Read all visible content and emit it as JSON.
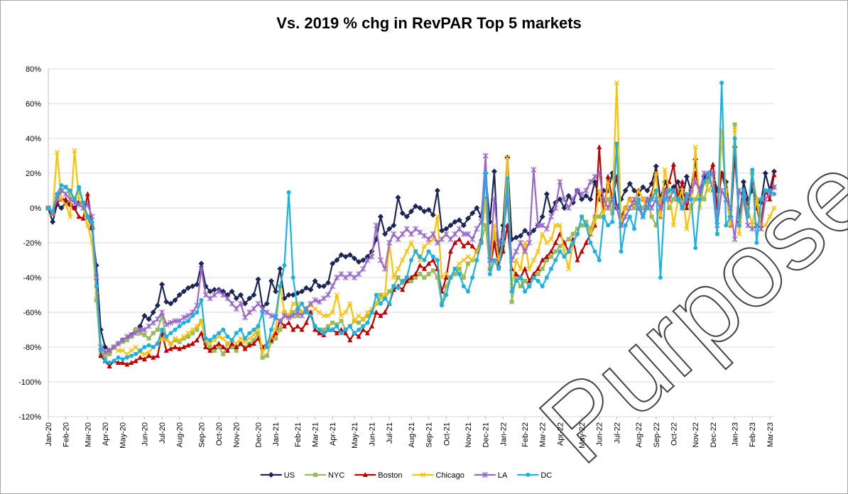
{
  "chart_data": {
    "type": "line",
    "title": "Vs. 2019 % chg in RevPAR Top 5 markets",
    "watermark": "Purpose",
    "grid": true,
    "legend": "bottom",
    "ylim": [
      -120,
      80
    ],
    "yticks": [
      {
        "value": -120,
        "label": "-120%"
      },
      {
        "value": -100,
        "label": "-100%"
      },
      {
        "value": -80,
        "label": "-80%"
      },
      {
        "value": -60,
        "label": "-60%"
      },
      {
        "value": -40,
        "label": "-40%"
      },
      {
        "value": -20,
        "label": "-20%"
      },
      {
        "value": 0,
        "label": "0%"
      },
      {
        "value": 20,
        "label": "20%"
      },
      {
        "value": 40,
        "label": "40%"
      },
      {
        "value": 60,
        "label": "60%"
      },
      {
        "value": 80,
        "label": "80%"
      }
    ],
    "categories": [
      "Jan-20",
      null,
      null,
      null,
      "Feb-20",
      null,
      null,
      null,
      null,
      "Mar-20",
      null,
      null,
      null,
      "Apr-20",
      null,
      null,
      null,
      "May-20",
      null,
      null,
      null,
      null,
      "Jun-20",
      null,
      null,
      null,
      "Jul-20",
      null,
      null,
      null,
      "Aug-20",
      null,
      null,
      null,
      null,
      "Sep-20",
      null,
      null,
      null,
      "Oct-20",
      null,
      null,
      null,
      "Nov-20",
      null,
      null,
      null,
      null,
      "Dec-20",
      null,
      null,
      null,
      "Jan-21",
      null,
      null,
      null,
      null,
      "Feb-21",
      null,
      null,
      null,
      "Mar-21",
      null,
      null,
      null,
      "Apr-21",
      null,
      null,
      null,
      null,
      "May-21",
      null,
      null,
      null,
      "Jun-21",
      null,
      null,
      null,
      "Jul-21",
      null,
      null,
      null,
      null,
      "Aug-21",
      null,
      null,
      null,
      "Sep-21",
      null,
      null,
      null,
      "Oct-21",
      null,
      null,
      null,
      null,
      "Nov-21",
      null,
      null,
      null,
      "Dec-21",
      null,
      null,
      null,
      "Jan-22",
      null,
      null,
      null,
      null,
      "Feb-22",
      null,
      null,
      null,
      "Mar-22",
      null,
      null,
      null,
      "Apr-22",
      null,
      null,
      null,
      null,
      "May-22",
      null,
      null,
      null,
      "Jun-22",
      null,
      null,
      null,
      "Jul-22",
      null,
      null,
      null,
      null,
      "Aug-22",
      null,
      null,
      null,
      "Sep-22",
      null,
      null,
      null,
      "Oct-22",
      null,
      null,
      null,
      null,
      "Nov-22",
      null,
      null,
      null,
      "Dec-22",
      null,
      null,
      null,
      null,
      "Jan-23",
      null,
      null,
      null,
      "Feb-23",
      null,
      null,
      null,
      "Mar-23",
      null
    ],
    "series": [
      {
        "name": "US",
        "color": "#1b2657",
        "marker": "diamond",
        "values": [
          0,
          -8,
          2,
          0,
          3,
          2,
          0,
          3,
          2,
          -5,
          -12,
          -33,
          -70,
          -80,
          -82,
          -80,
          -78,
          -76,
          -75,
          -73,
          -70,
          -68,
          -62,
          -64,
          -60,
          -56,
          -44,
          -54,
          -55,
          -53,
          -50,
          -48,
          -46,
          -45,
          -44,
          -32,
          -45,
          -48,
          -47,
          -47,
          -48,
          -50,
          -48,
          -52,
          -50,
          -55,
          -52,
          -50,
          -41,
          -57,
          -55,
          -42,
          -48,
          -35,
          -52,
          -50,
          -50,
          -49,
          -48,
          -46,
          -47,
          -42,
          -45,
          -45,
          -43,
          -32,
          -30,
          -27,
          -28,
          -27,
          -29,
          -31,
          -30,
          -28,
          -25,
          -18,
          -5,
          -15,
          -12,
          -10,
          6,
          -3,
          -5,
          -2,
          1,
          0,
          -2,
          -1,
          -4,
          10,
          -13,
          -12,
          -10,
          -8,
          -7,
          -10,
          -6,
          -3,
          0,
          -5,
          20,
          -8,
          21,
          -30,
          -10,
          29,
          -18,
          -17,
          -16,
          -13,
          -15,
          -13,
          -10,
          -5,
          8,
          -2,
          3,
          5,
          0,
          7,
          3,
          10,
          5,
          7,
          5,
          15,
          5,
          10,
          10,
          20,
          0,
          5,
          10,
          14,
          10,
          8,
          12,
          10,
          14,
          24,
          5,
          15,
          10,
          12,
          15,
          5,
          18,
          10,
          28,
          5,
          18,
          20,
          20,
          10,
          20,
          15,
          -5,
          35,
          -8,
          15,
          5,
          10,
          5,
          3,
          20,
          10,
          21
        ]
      },
      {
        "name": "NYC",
        "color": "#9bbb59",
        "marker": "square",
        "values": [
          0,
          -3,
          5,
          10,
          12,
          8,
          5,
          10,
          3,
          -5,
          -10,
          -53,
          -85,
          -86,
          -84,
          -80,
          -78,
          -77,
          -76,
          -74,
          -70,
          -72,
          -73,
          -75,
          -72,
          -70,
          -62,
          -75,
          -78,
          -76,
          -77,
          -75,
          -74,
          -72,
          -70,
          -65,
          -78,
          -80,
          -82,
          -80,
          -84,
          -78,
          -80,
          -82,
          -78,
          -80,
          -78,
          -76,
          -72,
          -86,
          -85,
          -77,
          -75,
          -70,
          -60,
          -62,
          -60,
          -62,
          -60,
          -58,
          -60,
          -68,
          -70,
          -70,
          -68,
          -66,
          -67,
          -65,
          -70,
          -68,
          -65,
          -66,
          -64,
          -62,
          -60,
          -55,
          -50,
          -52,
          -48,
          -45,
          -40,
          -43,
          -40,
          -42,
          -40,
          -38,
          -40,
          -38,
          -36,
          -40,
          -55,
          -45,
          -40,
          -38,
          -35,
          -40,
          -32,
          -30,
          -25,
          -20,
          -10,
          -35,
          -15,
          -30,
          -25,
          17,
          -54,
          -40,
          -45,
          -42,
          -45,
          -40,
          -38,
          -35,
          -30,
          -28,
          -25,
          -22,
          -20,
          -18,
          -15,
          -12,
          -10,
          -8,
          -12,
          -5,
          -5,
          0,
          5,
          -3,
          35,
          -10,
          0,
          5,
          0,
          3,
          0,
          5,
          -5,
          -10,
          5,
          10,
          0,
          5,
          10,
          3,
          5,
          0,
          5,
          10,
          5,
          15,
          20,
          0,
          40,
          10,
          -5,
          48,
          -10,
          5,
          0,
          20,
          5,
          -5,
          10,
          10,
          12
        ]
      },
      {
        "name": "Boston",
        "color": "#c00000",
        "marker": "triangle",
        "values": [
          0,
          -3,
          3,
          5,
          5,
          2,
          0,
          -5,
          -6,
          8,
          -10,
          -40,
          -85,
          -88,
          -91,
          -88,
          -89,
          -89,
          -90,
          -89,
          -88,
          -86,
          -87,
          -85,
          -86,
          -85,
          -72,
          -82,
          -81,
          -80,
          -81,
          -80,
          -79,
          -78,
          -76,
          -72,
          -80,
          -82,
          -80,
          -78,
          -80,
          -82,
          -78,
          -80,
          -78,
          -81,
          -79,
          -78,
          -75,
          -80,
          -78,
          -76,
          -72,
          -65,
          -68,
          -66,
          -70,
          -68,
          -70,
          -66,
          -60,
          -70,
          -72,
          -73,
          -70,
          -70,
          -72,
          -70,
          -72,
          -76,
          -72,
          -74,
          -70,
          -72,
          -68,
          -60,
          -62,
          -60,
          -55,
          -47,
          -45,
          -47,
          -42,
          -40,
          -38,
          -33,
          -35,
          -32,
          -30,
          -35,
          -48,
          -40,
          -25,
          -20,
          -18,
          -22,
          -20,
          -22,
          -25,
          -18,
          5,
          -35,
          -20,
          -33,
          -25,
          -10,
          -35,
          -38,
          -40,
          -35,
          -42,
          -38,
          -35,
          -30,
          -28,
          -25,
          -20,
          -15,
          -20,
          -25,
          -18,
          -30,
          -25,
          -20,
          -15,
          -10,
          35,
          -5,
          18,
          5,
          18,
          -5,
          0,
          5,
          3,
          10,
          5,
          0,
          8,
          20,
          -5,
          10,
          15,
          25,
          5,
          15,
          0,
          10,
          20,
          10,
          15,
          18,
          25,
          0,
          20,
          10,
          -10,
          30,
          -5,
          10,
          0,
          15,
          0,
          -10,
          10,
          5,
          19
        ]
      },
      {
        "name": "Chicago",
        "color": "#ffc000",
        "marker": "x",
        "values": [
          0,
          -3,
          32,
          5,
          2,
          -5,
          33,
          5,
          0,
          -10,
          -20,
          -50,
          -82,
          -84,
          -82,
          -80,
          -82,
          -82,
          -84,
          -82,
          -80,
          -83,
          -84,
          -83,
          -80,
          -78,
          -75,
          -76,
          -78,
          -75,
          -76,
          -74,
          -72,
          -70,
          -68,
          -65,
          -76,
          -78,
          -76,
          -74,
          -75,
          -78,
          -76,
          -78,
          -75,
          -77,
          -75,
          -73,
          -68,
          -83,
          -80,
          -74,
          -70,
          -45,
          -60,
          -62,
          -55,
          -55,
          -60,
          -58,
          -56,
          -58,
          -60,
          -62,
          -62,
          -60,
          -50,
          -62,
          -60,
          -55,
          -65,
          -62,
          -64,
          -60,
          -58,
          -55,
          -52,
          -50,
          -20,
          -40,
          -35,
          -30,
          -25,
          -20,
          -25,
          -30,
          -22,
          -20,
          -18,
          -5,
          -40,
          -38,
          -40,
          -35,
          -32,
          -30,
          -28,
          -30,
          -25,
          -20,
          5,
          -35,
          -10,
          -30,
          -20,
          29,
          -45,
          -30,
          -35,
          -20,
          -35,
          -30,
          -25,
          -15,
          -20,
          -18,
          -10,
          -10,
          -25,
          -35,
          -20,
          -15,
          -5,
          -10,
          -15,
          -8,
          10,
          -5,
          15,
          0,
          72,
          -10,
          0,
          5,
          3,
          10,
          5,
          0,
          5,
          20,
          -5,
          22,
          10,
          -10,
          5,
          10,
          -12,
          0,
          35,
          0,
          15,
          10,
          15,
          -15,
          45,
          10,
          -10,
          45,
          -15,
          5,
          0,
          -10,
          5,
          -12,
          -10,
          -5,
          0
        ]
      },
      {
        "name": "LA",
        "color": "#9966cc",
        "marker": "star",
        "values": [
          0,
          -2,
          5,
          10,
          8,
          5,
          3,
          2,
          0,
          2,
          -5,
          -40,
          -80,
          -83,
          -82,
          -80,
          -78,
          -76,
          -74,
          -73,
          -72,
          -70,
          -70,
          -68,
          -66,
          -64,
          -60,
          -67,
          -66,
          -65,
          -65,
          -63,
          -62,
          -60,
          -56,
          -35,
          -50,
          -52,
          -50,
          -48,
          -50,
          -52,
          -55,
          -58,
          -55,
          -63,
          -60,
          -58,
          -55,
          -58,
          -60,
          -62,
          -63,
          -65,
          -62,
          -63,
          -62,
          -60,
          -62,
          -58,
          -55,
          -53,
          -54,
          -52,
          -50,
          -45,
          -40,
          -38,
          -40,
          -38,
          -40,
          -38,
          -35,
          -30,
          -28,
          -10,
          -30,
          -35,
          -20,
          -15,
          -18,
          -15,
          -12,
          -15,
          -12,
          -14,
          -16,
          -18,
          -15,
          -20,
          -18,
          -15,
          -18,
          -15,
          -12,
          -15,
          -15,
          -18,
          -12,
          -8,
          30,
          -30,
          5,
          -20,
          -15,
          5,
          -30,
          -25,
          -20,
          -25,
          -20,
          22,
          -10,
          -10,
          -12,
          -5,
          0,
          15,
          5,
          0,
          5,
          10,
          8,
          10,
          15,
          18,
          20,
          5,
          0,
          5,
          0,
          -10,
          -5,
          0,
          5,
          0,
          -5,
          5,
          0,
          5,
          0,
          10,
          5,
          10,
          5,
          0,
          5,
          10,
          15,
          10,
          20,
          18,
          20,
          -10,
          10,
          5,
          0,
          -18,
          10,
          5,
          -10,
          -12,
          -10,
          -12,
          5,
          8,
          12
        ]
      },
      {
        "name": "DC",
        "color": "#19b2e6",
        "marker": "circle",
        "values": [
          0,
          -2,
          8,
          13,
          12,
          10,
          5,
          12,
          3,
          -5,
          -8,
          -45,
          -82,
          -88,
          -89,
          -88,
          -86,
          -87,
          -86,
          -85,
          -84,
          -82,
          -80,
          -79,
          -80,
          -78,
          -70,
          -74,
          -72,
          -70,
          -68,
          -66,
          -65,
          -62,
          -60,
          -53,
          -75,
          -76,
          -74,
          -72,
          -70,
          -74,
          -76,
          -72,
          -70,
          -75,
          -72,
          -70,
          -68,
          -60,
          -80,
          -70,
          -62,
          -45,
          -33,
          9,
          -40,
          -58,
          -55,
          -60,
          -62,
          -68,
          -70,
          -72,
          -70,
          -70,
          -68,
          -72,
          -70,
          -68,
          -72,
          -70,
          -68,
          -66,
          -60,
          -50,
          -55,
          -52,
          -55,
          -45,
          -46,
          -42,
          -40,
          -30,
          -25,
          -28,
          -30,
          -25,
          -28,
          -30,
          -56,
          -50,
          -40,
          -35,
          -38,
          -45,
          -48,
          -40,
          -30,
          -20,
          20,
          -38,
          -30,
          -35,
          -20,
          17,
          -48,
          -42,
          -40,
          -48,
          -45,
          -40,
          -42,
          -45,
          -40,
          -35,
          -30,
          -25,
          -28,
          -25,
          -20,
          -15,
          -5,
          -10,
          -20,
          -25,
          -30,
          -5,
          -10,
          -8,
          37,
          -25,
          -10,
          -5,
          -12,
          5,
          -5,
          0,
          5,
          10,
          -40,
          5,
          10,
          10,
          5,
          0,
          8,
          5,
          -23,
          5,
          15,
          20,
          10,
          -15,
          72,
          -10,
          -5,
          40,
          -10,
          10,
          -5,
          22,
          -20,
          5,
          10,
          10,
          8
        ]
      }
    ]
  }
}
